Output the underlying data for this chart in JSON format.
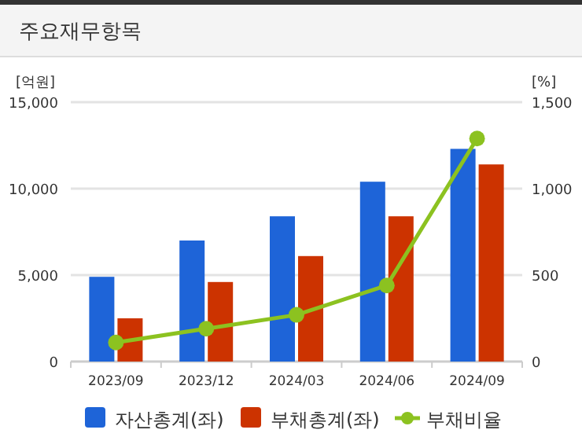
{
  "chart_data": {
    "type": "bar",
    "title": "주요재무항목",
    "ylabel": "[억원]",
    "y2label": "[%]",
    "categories": [
      "2023/09",
      "2023/12",
      "2024/03",
      "2024/06",
      "2024/09"
    ],
    "series": [
      {
        "name": "자산총계(좌)",
        "color": "#1e64d8",
        "values": [
          4900,
          7000,
          8400,
          10400,
          12300
        ]
      },
      {
        "name": "부채총계(좌)",
        "color": "#cc3300",
        "values": [
          2500,
          4600,
          6100,
          8400,
          11400
        ]
      },
      {
        "name": "부채비율",
        "type": "line",
        "axis": "y2",
        "color": "#8cc220",
        "values": [
          110,
          190,
          270,
          440,
          1290
        ]
      }
    ],
    "ylim": [
      0,
      15000
    ],
    "yticks": [
      0,
      {
        "value": 5000,
        "label": "5,000"
      },
      {
        "value": 10000,
        "label": "10,000"
      },
      {
        "value": 15000,
        "label": "15,000"
      }
    ],
    "y2lim": [
      0,
      1500
    ],
    "y2ticks": [
      0,
      500,
      {
        "value": 1000,
        "label": "1,000"
      },
      {
        "value": 1500,
        "label": "1,500"
      }
    ],
    "grid": "y",
    "legend": "bottom",
    "marker": "circle"
  }
}
